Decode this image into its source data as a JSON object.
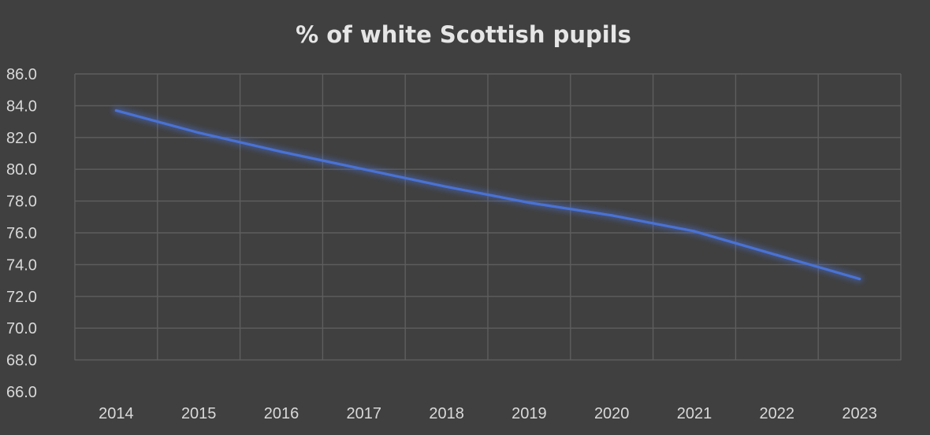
{
  "chart_data": {
    "type": "line",
    "title": "% of white Scottish pupils",
    "xlabel": "",
    "ylabel": "",
    "categories": [
      "2014",
      "2015",
      "2016",
      "2017",
      "2018",
      "2019",
      "2020",
      "2021",
      "2022",
      "2023"
    ],
    "series": [
      {
        "values": [
          83.7,
          82.3,
          81.1,
          80.0,
          78.9,
          77.9,
          77.1,
          76.1,
          74.6,
          73.1
        ],
        "color": "#4a72d4"
      }
    ],
    "ylim": [
      66,
      86
    ],
    "yticks": [
      "66.0",
      "68.0",
      "70.0",
      "72.0",
      "74.0",
      "76.0",
      "78.0",
      "80.0",
      "82.0",
      "84.0",
      "86.0"
    ],
    "grid": true,
    "legend": "none",
    "background_color": "#404040"
  }
}
